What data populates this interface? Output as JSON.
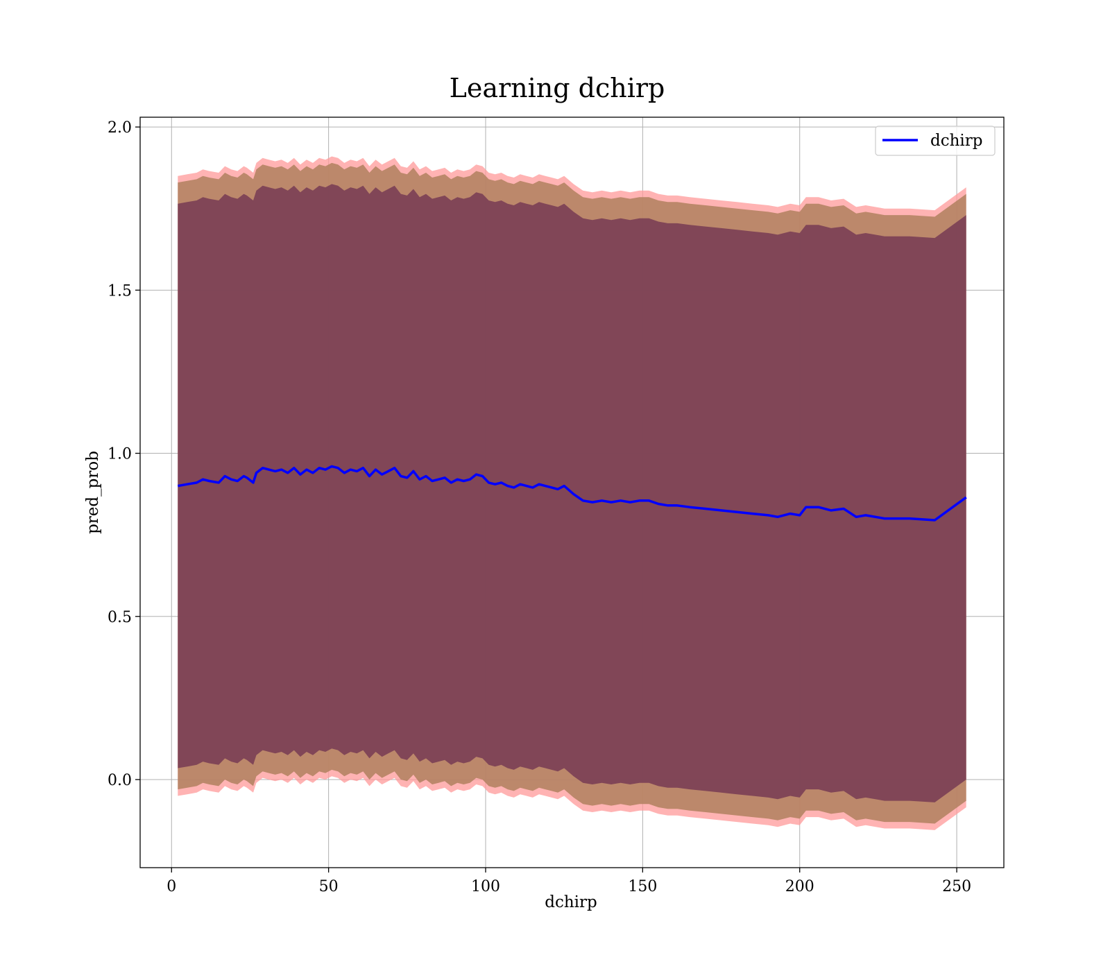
{
  "chart_data": {
    "type": "line",
    "title": "Learning dchirp",
    "xlabel": "dchirp",
    "ylabel": "pred_prob",
    "xlim": [
      -10,
      265
    ],
    "ylim": [
      -0.27,
      2.03
    ],
    "xticks": [
      0,
      50,
      100,
      150,
      200,
      250
    ],
    "yticks": [
      0.0,
      0.5,
      1.0,
      1.5,
      2.0
    ],
    "xtick_labels": [
      "0",
      "50",
      "100",
      "150",
      "200",
      "250"
    ],
    "ytick_labels": [
      "0.0",
      "0.5",
      "1.0",
      "1.5",
      "2.0"
    ],
    "grid": true,
    "legend": {
      "position": "top-right",
      "entries": [
        "dchirp"
      ]
    },
    "colors": {
      "line": "#0000ff",
      "band_outer": "#ff9999",
      "band_middle": "#b0805e",
      "band_inner": "#7a3f55"
    },
    "series": [
      {
        "name": "dchirp",
        "x": [
          2,
          5,
          8,
          10,
          12,
          15,
          17,
          19,
          21,
          23,
          24,
          26,
          27,
          29,
          31,
          33,
          35,
          37,
          39,
          41,
          43,
          45,
          47,
          49,
          51,
          53,
          55,
          57,
          59,
          61,
          63,
          65,
          67,
          69,
          71,
          73,
          75,
          77,
          79,
          81,
          83,
          85,
          87,
          89,
          91,
          93,
          95,
          97,
          99,
          101,
          103,
          105,
          107,
          109,
          111,
          113,
          115,
          117,
          119,
          121,
          123,
          125,
          128,
          131,
          134,
          137,
          140,
          143,
          146,
          149,
          152,
          155,
          158,
          161,
          165,
          170,
          175,
          180,
          185,
          190,
          193,
          197,
          200,
          202,
          206,
          210,
          214,
          218,
          221,
          227,
          235,
          243,
          253
        ],
        "y": [
          0.9,
          0.905,
          0.91,
          0.92,
          0.915,
          0.91,
          0.93,
          0.92,
          0.915,
          0.93,
          0.925,
          0.91,
          0.94,
          0.955,
          0.95,
          0.945,
          0.95,
          0.94,
          0.955,
          0.935,
          0.95,
          0.94,
          0.955,
          0.95,
          0.96,
          0.955,
          0.94,
          0.95,
          0.945,
          0.955,
          0.93,
          0.95,
          0.935,
          0.945,
          0.955,
          0.93,
          0.925,
          0.945,
          0.92,
          0.93,
          0.915,
          0.92,
          0.925,
          0.91,
          0.92,
          0.915,
          0.92,
          0.935,
          0.93,
          0.91,
          0.905,
          0.91,
          0.9,
          0.895,
          0.905,
          0.9,
          0.895,
          0.905,
          0.9,
          0.895,
          0.89,
          0.9,
          0.875,
          0.855,
          0.85,
          0.855,
          0.85,
          0.855,
          0.85,
          0.855,
          0.855,
          0.845,
          0.84,
          0.84,
          0.835,
          0.83,
          0.825,
          0.82,
          0.815,
          0.81,
          0.805,
          0.815,
          0.81,
          0.835,
          0.835,
          0.825,
          0.83,
          0.805,
          0.81,
          0.8,
          0.8,
          0.795,
          0.865
        ]
      }
    ],
    "bands": [
      {
        "name": "outer",
        "half_width": 0.95
      },
      {
        "name": "middle",
        "half_width": 0.93
      },
      {
        "name": "inner",
        "half_width": 0.865
      }
    ]
  }
}
